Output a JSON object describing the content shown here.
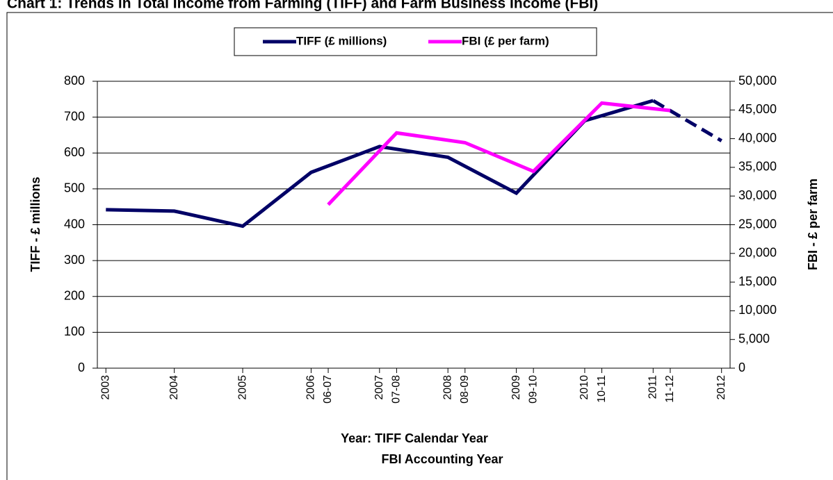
{
  "chart_data": {
    "type": "line",
    "title": "Chart 1: Trends in Total Income from Farming (TIFF) and Farm Business Income (FBI)",
    "xlabel": "Year: TIFF Calendar Year",
    "xlabel_sub": "FBI Accounting Year",
    "ylabel": "TIFF - £ millions",
    "y2label": "FBI - £ per farm",
    "xlim": [
      2002.875,
      2012.125
    ],
    "xticks": [
      2003,
      2004,
      2005,
      2006,
      {
        "value": 2006.25,
        "label": "06-07"
      },
      2007,
      {
        "value": 2007.25,
        "label": "07-08"
      },
      2008,
      {
        "value": 2008.25,
        "label": "08-09"
      },
      2009,
      {
        "value": 2009.25,
        "label": "09-10"
      },
      2010,
      {
        "value": 2010.25,
        "label": "10-11"
      },
      2011,
      {
        "value": 2011.25,
        "label": "11-12"
      },
      2012
    ],
    "ylim": [
      0,
      800
    ],
    "yticks": [
      0,
      100,
      200,
      300,
      400,
      500,
      600,
      700,
      800
    ],
    "y2lim": [
      0,
      50000
    ],
    "y2ticks": [
      0,
      {
        "value": 5000,
        "label": "5,000"
      },
      {
        "value": 10000,
        "label": "10,000"
      },
      {
        "value": 15000,
        "label": "15,000"
      },
      {
        "value": 20000,
        "label": "20,000"
      },
      {
        "value": 25000,
        "label": "25,000"
      },
      {
        "value": 30000,
        "label": "30,000"
      },
      {
        "value": 35000,
        "label": "35,000"
      },
      {
        "value": 40000,
        "label": "40,000"
      },
      {
        "value": 45000,
        "label": "45,000"
      },
      {
        "value": 50000,
        "label": "50,000"
      }
    ],
    "grid": true,
    "legend": "top",
    "series": [
      {
        "name": "TIFF (£ millions)",
        "color": "#000066",
        "dashed_from_x": 2011,
        "x": [
          2003,
          2004,
          2005,
          2006,
          2007,
          2008,
          2009,
          2010,
          2011,
          2012
        ],
        "values": [
          442,
          438,
          396,
          546,
          618,
          588,
          488,
          690,
          746,
          634
        ]
      },
      {
        "name": "FBI (£ per farm)",
        "color": "#ff00ff",
        "axis": "y2",
        "x": [
          2006.25,
          2007.25,
          2008.25,
          2009.25,
          2010.25,
          2011.25
        ],
        "values": [
          28500,
          41000,
          39300,
          34300,
          46200,
          44900
        ]
      }
    ]
  }
}
